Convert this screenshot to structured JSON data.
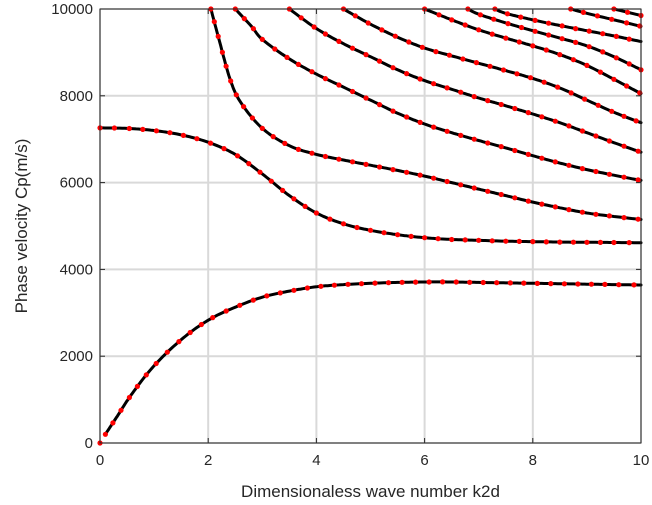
{
  "chart_data": {
    "type": "line",
    "title": "",
    "xlabel": "Dimensionaless wave number k2d",
    "ylabel": "Phase velocity Cp(m/s)",
    "xlim": [
      0,
      10
    ],
    "ylim": [
      0,
      10000
    ],
    "xticks": [
      0,
      2,
      4,
      6,
      8,
      10
    ],
    "yticks": [
      0,
      2000,
      4000,
      6000,
      8000,
      10000
    ],
    "xtick_labels": [
      "0",
      "2",
      "4",
      "6",
      "8",
      "10"
    ],
    "ytick_labels": [
      "0",
      "2000",
      "4000",
      "6000",
      "8000",
      "10000"
    ],
    "grid": true,
    "colors": {
      "line": "#000000",
      "marker": "#ff0000",
      "grid": "#d9d9d9",
      "axis": "#262626"
    },
    "series": [
      {
        "style": "solid-line-with-red-dots",
        "points": [
          [
            0.1,
            200
          ],
          [
            0.3,
            580
          ],
          [
            0.6,
            1150
          ],
          [
            1.0,
            1780
          ],
          [
            1.5,
            2380
          ],
          [
            2.0,
            2830
          ],
          [
            2.5,
            3130
          ],
          [
            3.0,
            3360
          ],
          [
            3.5,
            3500
          ],
          [
            4.0,
            3600
          ],
          [
            4.5,
            3650
          ],
          [
            5.0,
            3680
          ],
          [
            5.5,
            3700
          ],
          [
            6.0,
            3710
          ],
          [
            6.5,
            3710
          ],
          [
            7.0,
            3700
          ],
          [
            7.5,
            3690
          ],
          [
            8.0,
            3680
          ],
          [
            8.5,
            3670
          ],
          [
            9.0,
            3660
          ],
          [
            9.5,
            3650
          ],
          [
            10.0,
            3640
          ]
        ]
      },
      {
        "style": "solid-line-with-red-dots",
        "points": [
          [
            0.0,
            7260
          ],
          [
            0.5,
            7250
          ],
          [
            1.0,
            7200
          ],
          [
            1.5,
            7100
          ],
          [
            2.0,
            6930
          ],
          [
            2.5,
            6650
          ],
          [
            3.0,
            6200
          ],
          [
            3.5,
            5700
          ],
          [
            4.0,
            5300
          ],
          [
            4.5,
            5050
          ],
          [
            5.0,
            4900
          ],
          [
            5.5,
            4800
          ],
          [
            6.0,
            4730
          ],
          [
            6.5,
            4690
          ],
          [
            7.0,
            4670
          ],
          [
            7.5,
            4650
          ],
          [
            8.0,
            4640
          ],
          [
            8.5,
            4630
          ],
          [
            9.0,
            4625
          ],
          [
            9.5,
            4620
          ],
          [
            10.0,
            4615
          ]
        ]
      },
      {
        "style": "solid-line-with-red-dots",
        "points": [
          [
            2.05,
            10000
          ],
          [
            2.2,
            9300
          ],
          [
            2.4,
            8400
          ],
          [
            2.6,
            7850
          ],
          [
            3.0,
            7250
          ],
          [
            3.5,
            6850
          ],
          [
            4.0,
            6650
          ],
          [
            4.5,
            6520
          ],
          [
            5.0,
            6400
          ],
          [
            5.5,
            6280
          ],
          [
            6.0,
            6150
          ],
          [
            6.5,
            6000
          ],
          [
            7.0,
            5850
          ],
          [
            7.5,
            5700
          ],
          [
            8.0,
            5550
          ],
          [
            8.5,
            5420
          ],
          [
            9.0,
            5300
          ],
          [
            9.5,
            5220
          ],
          [
            10.0,
            5150
          ]
        ]
      },
      {
        "style": "solid-line-with-red-dots",
        "points": [
          [
            2.5,
            10000
          ],
          [
            2.8,
            9600
          ],
          [
            3.0,
            9300
          ],
          [
            3.5,
            8850
          ],
          [
            4.0,
            8500
          ],
          [
            4.5,
            8200
          ],
          [
            5.0,
            7900
          ],
          [
            5.5,
            7600
          ],
          [
            6.0,
            7350
          ],
          [
            6.5,
            7150
          ],
          [
            7.0,
            6970
          ],
          [
            7.5,
            6800
          ],
          [
            8.0,
            6620
          ],
          [
            8.5,
            6450
          ],
          [
            9.0,
            6300
          ],
          [
            9.5,
            6170
          ],
          [
            10.0,
            6050
          ]
        ]
      },
      {
        "style": "solid-line-with-red-dots",
        "points": [
          [
            3.5,
            10000
          ],
          [
            4.0,
            9550
          ],
          [
            4.5,
            9200
          ],
          [
            5.0,
            8900
          ],
          [
            5.5,
            8600
          ],
          [
            6.0,
            8350
          ],
          [
            6.5,
            8150
          ],
          [
            7.0,
            7950
          ],
          [
            7.5,
            7770
          ],
          [
            8.0,
            7580
          ],
          [
            8.5,
            7380
          ],
          [
            9.0,
            7150
          ],
          [
            9.5,
            6920
          ],
          [
            10.0,
            6700
          ]
        ]
      },
      {
        "style": "solid-line-with-red-dots",
        "points": [
          [
            4.5,
            10000
          ],
          [
            5.0,
            9650
          ],
          [
            5.5,
            9350
          ],
          [
            6.0,
            9100
          ],
          [
            6.5,
            8920
          ],
          [
            7.0,
            8750
          ],
          [
            7.5,
            8580
          ],
          [
            8.0,
            8400
          ],
          [
            8.5,
            8180
          ],
          [
            9.0,
            7900
          ],
          [
            9.5,
            7620
          ],
          [
            10.0,
            7380
          ]
        ]
      },
      {
        "style": "solid-line-with-red-dots",
        "points": [
          [
            6.0,
            10000
          ],
          [
            6.5,
            9750
          ],
          [
            7.0,
            9520
          ],
          [
            7.5,
            9330
          ],
          [
            8.0,
            9150
          ],
          [
            8.5,
            8950
          ],
          [
            9.0,
            8700
          ],
          [
            9.5,
            8380
          ],
          [
            10.0,
            8050
          ]
        ]
      },
      {
        "style": "solid-line-with-red-dots",
        "points": [
          [
            6.8,
            10000
          ],
          [
            7.0,
            9880
          ],
          [
            7.5,
            9680
          ],
          [
            8.0,
            9500
          ],
          [
            8.5,
            9330
          ],
          [
            9.0,
            9150
          ],
          [
            9.5,
            8900
          ],
          [
            10.0,
            8600
          ]
        ]
      },
      {
        "style": "solid-line-with-red-dots",
        "points": [
          [
            7.3,
            10000
          ],
          [
            7.5,
            9900
          ],
          [
            8.0,
            9750
          ],
          [
            8.5,
            9620
          ],
          [
            9.0,
            9500
          ],
          [
            9.5,
            9380
          ],
          [
            10.0,
            9250
          ]
        ]
      },
      {
        "style": "solid-line-with-red-dots",
        "points": [
          [
            8.7,
            10000
          ],
          [
            9.0,
            9900
          ],
          [
            9.5,
            9750
          ],
          [
            10.0,
            9600
          ]
        ]
      },
      {
        "style": "solid-line-with-red-dots",
        "points": [
          [
            9.5,
            10000
          ],
          [
            10.0,
            9850
          ]
        ]
      }
    ],
    "extra_points": [
      [
        0.0,
        0
      ]
    ]
  }
}
